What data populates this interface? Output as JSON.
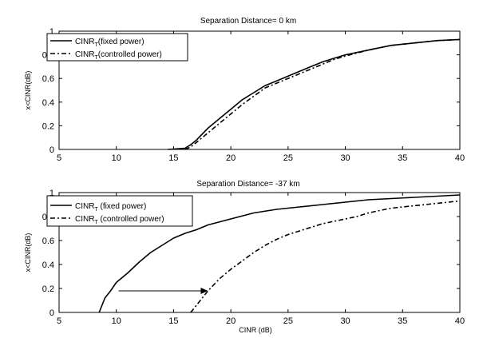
{
  "chart_data": [
    {
      "type": "line",
      "title": "Separation Distance= 0 km",
      "xlabel": "",
      "ylabel": "x<CINR(dB)",
      "xlim": [
        5,
        40
      ],
      "ylim": [
        0,
        1
      ],
      "xticks": [
        5,
        10,
        15,
        20,
        25,
        30,
        35,
        40
      ],
      "yticks": [
        0,
        0.2,
        0.4,
        0.6,
        0.8,
        1
      ],
      "yticklabels": [
        "0",
        "0.2",
        "0.4",
        "0.6",
        "0.8",
        "1"
      ],
      "grid": false,
      "legend": "top-left",
      "series": [
        {
          "name_main": "CINR",
          "name_sub": "T",
          "name_rest": "(fixed power)",
          "style": "solid",
          "points": [
            [
              14.5,
              0
            ],
            [
              16,
              0.01
            ],
            [
              16.5,
              0.04
            ],
            [
              17,
              0.08
            ],
            [
              18,
              0.18
            ],
            [
              19,
              0.26
            ],
            [
              20,
              0.34
            ],
            [
              21,
              0.42
            ],
            [
              22,
              0.48
            ],
            [
              23,
              0.54
            ],
            [
              24,
              0.58
            ],
            [
              25,
              0.62
            ],
            [
              26,
              0.66
            ],
            [
              27,
              0.7
            ],
            [
              28,
              0.74
            ],
            [
              29,
              0.77
            ],
            [
              30,
              0.8
            ],
            [
              32,
              0.84
            ],
            [
              34,
              0.88
            ],
            [
              36,
              0.9
            ],
            [
              38,
              0.92
            ],
            [
              40,
              0.93
            ]
          ]
        },
        {
          "name_main": "CINR",
          "name_sub": "T",
          "name_rest": "(controlled power)",
          "style": "dashdot",
          "points": [
            [
              16,
              0
            ],
            [
              16.5,
              0.02
            ],
            [
              17,
              0.06
            ],
            [
              18,
              0.14
            ],
            [
              19,
              0.22
            ],
            [
              20,
              0.3
            ],
            [
              21,
              0.38
            ],
            [
              22,
              0.45
            ],
            [
              23,
              0.52
            ],
            [
              24,
              0.56
            ],
            [
              25,
              0.6
            ],
            [
              26,
              0.64
            ],
            [
              27,
              0.68
            ],
            [
              28,
              0.72
            ],
            [
              29,
              0.76
            ],
            [
              30,
              0.79
            ],
            [
              32,
              0.84
            ],
            [
              34,
              0.88
            ],
            [
              36,
              0.9
            ],
            [
              38,
              0.92
            ],
            [
              40,
              0.93
            ]
          ]
        }
      ]
    },
    {
      "type": "line",
      "title": "Separation Distance= -37 km",
      "xlabel": "CINR (dB)",
      "ylabel": "x<CINR(dB)",
      "xlim": [
        5,
        40
      ],
      "ylim": [
        0,
        1
      ],
      "xticks": [
        5,
        10,
        15,
        20,
        25,
        30,
        35,
        40
      ],
      "yticks": [
        0,
        0.2,
        0.4,
        0.6,
        0.8,
        1
      ],
      "yticklabels": [
        "0",
        "0.2",
        "0.4",
        "0.6",
        "0.8",
        "1"
      ],
      "grid": false,
      "legend": "top-left",
      "annotation_arrow": {
        "from": [
          10.2,
          0.18
        ],
        "to": [
          18,
          0.18
        ]
      },
      "series": [
        {
          "name_main": "CINR",
          "name_sub": "T",
          "name_rest": " (fixed power)",
          "style": "solid",
          "points": [
            [
              8.5,
              0
            ],
            [
              9,
              0.12
            ],
            [
              9.5,
              0.18
            ],
            [
              10,
              0.25
            ],
            [
              11,
              0.33
            ],
            [
              12,
              0.42
            ],
            [
              13,
              0.5
            ],
            [
              14,
              0.56
            ],
            [
              15,
              0.62
            ],
            [
              16,
              0.66
            ],
            [
              17,
              0.69
            ],
            [
              18,
              0.73
            ],
            [
              20,
              0.78
            ],
            [
              22,
              0.83
            ],
            [
              24,
              0.86
            ],
            [
              26,
              0.88
            ],
            [
              28,
              0.9
            ],
            [
              30,
              0.92
            ],
            [
              32,
              0.94
            ],
            [
              34,
              0.95
            ],
            [
              36,
              0.96
            ],
            [
              38,
              0.97
            ],
            [
              40,
              0.98
            ]
          ]
        },
        {
          "name_main": "CINR",
          "name_sub": "T",
          "name_rest": " (controlled power)",
          "style": "dashdot",
          "points": [
            [
              16.5,
              0
            ],
            [
              17,
              0.06
            ],
            [
              17.5,
              0.12
            ],
            [
              18,
              0.18
            ],
            [
              19,
              0.28
            ],
            [
              20,
              0.36
            ],
            [
              21,
              0.43
            ],
            [
              22,
              0.5
            ],
            [
              23,
              0.56
            ],
            [
              24,
              0.61
            ],
            [
              25,
              0.65
            ],
            [
              26,
              0.68
            ],
            [
              27,
              0.71
            ],
            [
              28,
              0.74
            ],
            [
              29,
              0.76
            ],
            [
              30,
              0.78
            ],
            [
              31,
              0.8
            ],
            [
              32,
              0.83
            ],
            [
              33,
              0.85
            ],
            [
              34,
              0.87
            ],
            [
              35,
              0.88
            ],
            [
              36,
              0.89
            ],
            [
              38,
              0.91
            ],
            [
              40,
              0.93
            ]
          ]
        }
      ]
    }
  ]
}
